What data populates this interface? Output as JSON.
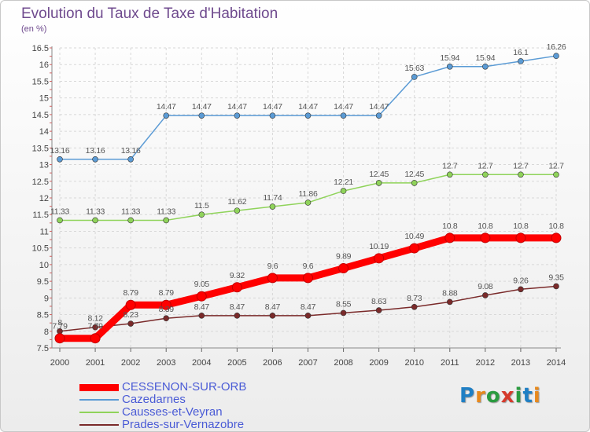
{
  "header": {
    "title": "Evolution du Taux de Taxe d'Habitation",
    "subtitle": "(en %)"
  },
  "logo": {
    "text": "Proxiti",
    "colors": [
      "#1f7fc4",
      "#e8891c",
      "#2a9b3f",
      "#d63a2c",
      "#2a9b3f",
      "#1f7fc4",
      "#e8891c"
    ]
  },
  "chart_data": {
    "type": "line",
    "title": "Evolution du Taux de Taxe d'Habitation",
    "subtitle": "(en %)",
    "xlabel": "",
    "ylabel": "",
    "x": [
      2000,
      2001,
      2002,
      2003,
      2004,
      2005,
      2006,
      2007,
      2008,
      2009,
      2010,
      2011,
      2012,
      2013,
      2014
    ],
    "yticks": [
      "7.5",
      "8",
      "8.5",
      "9",
      "9.5",
      "10",
      "10.5",
      "11",
      "11.5",
      "12",
      "12.5",
      "13",
      "13.5",
      "14",
      "14.5",
      "15",
      "15.5",
      "16",
      "16.5"
    ],
    "ylim": [
      7.5,
      16.5
    ],
    "grid": true,
    "legend": "bottom-left",
    "series": [
      {
        "name": "CESSENON-SUR-ORB",
        "color": "#ff0000",
        "values": [
          7.79,
          7.79,
          8.79,
          8.79,
          9.05,
          9.32,
          9.6,
          9.6,
          9.89,
          10.19,
          10.49,
          10.8,
          10.8,
          10.8,
          10.8
        ],
        "labels": [
          "7.79",
          "7.79",
          "8.79",
          "8.79",
          "9.05",
          "9.32",
          "9.6",
          "9.6",
          "9.89",
          "10.19",
          "10.49",
          "10.8",
          "10.8",
          "10.8",
          "10.8"
        ]
      },
      {
        "name": "Cazedarnes",
        "color": "#5b9bd5",
        "values": [
          13.16,
          13.16,
          13.16,
          14.47,
          14.47,
          14.47,
          14.47,
          14.47,
          14.47,
          14.47,
          15.63,
          15.94,
          15.94,
          16.1,
          16.26
        ],
        "labels": [
          "13.16",
          "13.16",
          "13.16",
          "14.47",
          "14.47",
          "14.47",
          "14.47",
          "14.47",
          "14.47",
          "14.47",
          "15.63",
          "15.94",
          "15.94",
          "16.1",
          "16.26"
        ]
      },
      {
        "name": "Causses-et-Veyran",
        "color": "#8fd35a",
        "values": [
          11.33,
          11.33,
          11.33,
          11.33,
          11.5,
          11.62,
          11.74,
          11.86,
          12.21,
          12.45,
          12.45,
          12.7,
          12.7,
          12.7,
          12.7
        ],
        "labels": [
          "11.33",
          "11.33",
          "11.33",
          "11.33",
          "11.5",
          "11.62",
          "11.74",
          "11.86",
          "12.21",
          "12.45",
          "12.45",
          "12.7",
          "12.7",
          "12.7",
          "12.7"
        ]
      },
      {
        "name": "Prades-sur-Vernazobre",
        "color": "#7a2a2a",
        "values": [
          8.0,
          8.12,
          8.23,
          8.39,
          8.47,
          8.47,
          8.47,
          8.47,
          8.55,
          8.63,
          8.73,
          8.88,
          9.08,
          9.26,
          9.35
        ],
        "labels": [
          "8",
          "8.12",
          "8.23",
          "8.39",
          "8.47",
          "8.47",
          "8.47",
          "8.47",
          "8.55",
          "8.63",
          "8.73",
          "8.88",
          "9.08",
          "9.26",
          "9.35"
        ]
      }
    ]
  }
}
